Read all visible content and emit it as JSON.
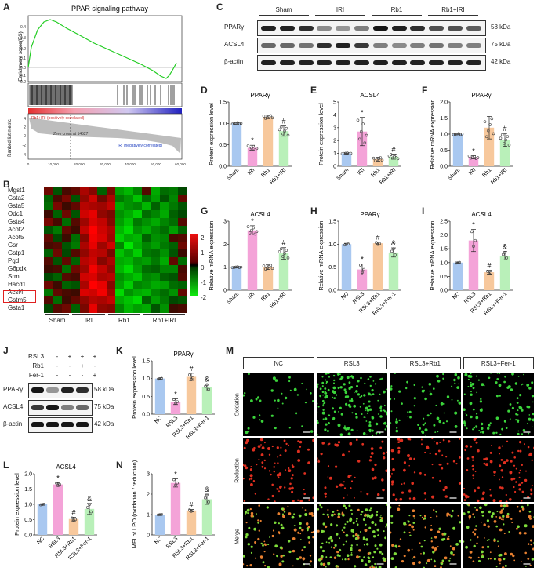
{
  "panel_letters": [
    "A",
    "B",
    "C",
    "D",
    "E",
    "F",
    "G",
    "H",
    "I",
    "J",
    "K",
    "L",
    "M",
    "N"
  ],
  "gsea": {
    "title": "PPAR signaling pathway",
    "ylabel_top": "Enrichment score(ES)",
    "ylabel_bottom": "Ranked list metric",
    "pos_label": "Rb1+IRI (positively correlated)",
    "neg_label": "IRI (negatively correlated)",
    "zero_cross": "Zero cross at 14527",
    "ytick_top": [
      "0.4",
      "0.3",
      "0.2",
      "0.1",
      "0.0",
      "-0.1",
      "-0.2"
    ],
    "ytick_bottom": [
      "4",
      "2",
      "0",
      "-2",
      "-4"
    ],
    "xticks": [
      "0",
      "10,000",
      "20,000",
      "30,000",
      "40,000",
      "50,000",
      "60,000"
    ]
  },
  "heatmap": {
    "genes": [
      "Mgst1",
      "Gsta2",
      "Gsta5",
      "Odc1",
      "Gsta4",
      "Acot2",
      "Acot5",
      "Gsr",
      "Gstp1",
      "Pgd",
      "G6pdx",
      "Srm",
      "Hacd1",
      "Acsl4",
      "Gstm5",
      "Gsta1"
    ],
    "highlight": "Acsl4",
    "groups": [
      "Sham",
      "IRI",
      "Rb1",
      "Rb1+IRI"
    ],
    "scale": [
      "2",
      "1",
      "0",
      "-1",
      "-2"
    ],
    "values": [
      [
        0.4,
        -0.2,
        0.1,
        0.3,
        0.9,
        0.6,
        -0.3,
        0.5,
        -0.8,
        -1.0,
        -0.6,
        0.2,
        -0.9,
        -0.4,
        -0.5,
        -0.1
      ],
      [
        -0.3,
        0.1,
        0.5,
        -0.2,
        0.7,
        1.2,
        0.4,
        0.9,
        -0.5,
        -0.7,
        -1.1,
        -0.4,
        -0.8,
        -0.2,
        -0.6,
        0.3
      ],
      [
        -0.4,
        0.5,
        0.0,
        0.3,
        1.0,
        0.9,
        0.8,
        1.1,
        -0.9,
        -0.7,
        -0.6,
        -1.0,
        -0.3,
        -0.8,
        -0.5,
        -0.2
      ],
      [
        0.0,
        -0.3,
        0.4,
        -0.2,
        1.2,
        1.4,
        0.7,
        0.5,
        -0.7,
        -0.9,
        -1.2,
        -0.4,
        -0.6,
        -0.9,
        -0.3,
        -0.1
      ],
      [
        0.5,
        0.1,
        -0.4,
        0.2,
        0.8,
        1.3,
        1.1,
        0.6,
        -0.8,
        -1.1,
        -0.5,
        -0.7,
        -0.9,
        -0.6,
        -0.4,
        0.2
      ],
      [
        -0.2,
        -0.5,
        0.3,
        0.0,
        1.1,
        1.6,
        1.2,
        0.9,
        -1.0,
        -1.3,
        -0.7,
        -0.9,
        -0.6,
        -0.4,
        -0.8,
        -0.3
      ],
      [
        0.3,
        -0.1,
        0.0,
        -0.4,
        0.6,
        1.5,
        1.3,
        0.8,
        -1.2,
        -0.9,
        -1.0,
        -0.3,
        -0.7,
        -0.6,
        0.1,
        0.2
      ],
      [
        0.1,
        0.2,
        -0.2,
        -0.5,
        0.9,
        1.4,
        0.8,
        1.2,
        -0.6,
        -1.4,
        -0.9,
        -0.6,
        -0.8,
        -0.5,
        -0.3,
        0.4
      ],
      [
        -0.3,
        0.4,
        -0.1,
        0.2,
        0.7,
        1.1,
        1.0,
        0.5,
        -1.1,
        -0.8,
        -1.2,
        -0.5,
        -0.4,
        -0.7,
        -0.2,
        0.0
      ],
      [
        0.2,
        -0.2,
        0.3,
        -0.3,
        1.0,
        1.2,
        0.6,
        0.9,
        -0.9,
        -1.0,
        -0.7,
        -0.8,
        -0.5,
        -0.9,
        0.3,
        -0.4
      ],
      [
        0.0,
        0.1,
        -0.4,
        0.4,
        0.8,
        1.5,
        1.1,
        0.7,
        -1.0,
        -1.3,
        -0.8,
        -0.4,
        -0.3,
        -0.6,
        -0.6,
        0.1
      ],
      [
        -0.1,
        -0.3,
        0.2,
        0.1,
        1.2,
        1.3,
        0.9,
        1.0,
        -0.7,
        -0.9,
        -1.1,
        -0.6,
        -0.7,
        -0.3,
        -0.2,
        0.2
      ],
      [
        0.4,
        0.0,
        -0.3,
        -0.2,
        0.9,
        1.6,
        1.4,
        0.6,
        -0.8,
        -1.2,
        -0.6,
        -0.7,
        -0.9,
        -0.8,
        -0.4,
        -0.3
      ],
      [
        -0.5,
        0.3,
        0.1,
        0.0,
        1.3,
        1.2,
        1.5,
        0.8,
        -1.3,
        -0.7,
        -0.9,
        -1.0,
        -0.6,
        -0.4,
        -0.7,
        0.3
      ],
      [
        0.2,
        -0.4,
        0.0,
        0.3,
        0.7,
        1.0,
        0.9,
        1.1,
        -0.9,
        -1.1,
        -1.3,
        -0.3,
        -0.8,
        -0.5,
        -0.1,
        -0.2
      ],
      [
        -0.1,
        0.2,
        0.4,
        -0.3,
        0.5,
        1.4,
        0.7,
        0.6,
        -0.6,
        -1.0,
        -0.8,
        -0.9,
        -0.2,
        -0.7,
        0.0,
        0.1
      ]
    ]
  },
  "wb_c": {
    "groups": [
      "Sham",
      "IRI",
      "Rb1",
      "Rb1+IRI"
    ],
    "rows": [
      {
        "name": "PPARγ",
        "kda": "58 kDa"
      },
      {
        "name": "ACSL4",
        "kda": "75 kDa"
      },
      {
        "name": "β-actin",
        "kda": "42 kDa"
      }
    ]
  },
  "wb_j": {
    "treat_rows": [
      {
        "name": "RSL3",
        "marks": [
          "-",
          "+",
          "+",
          "+"
        ]
      },
      {
        "name": "Rb1",
        "marks": [
          "-",
          "-",
          "+",
          "-"
        ]
      },
      {
        "name": "Fer-1",
        "marks": [
          "-",
          "-",
          "-",
          "+"
        ]
      }
    ],
    "rows": [
      {
        "name": "PPARγ",
        "kda": "58 kDa"
      },
      {
        "name": "ACSL4",
        "kda": "75 kDa"
      },
      {
        "name": "β-actin",
        "kda": "42 kDa"
      }
    ]
  },
  "micro": {
    "cols": [
      "NC",
      "RSL3",
      "RSL3+Rb1",
      "RSL3+Fer-1"
    ],
    "rows": [
      "Oxidation",
      "Reduction",
      "Merge"
    ]
  },
  "chart_data": [
    {
      "panel": "D",
      "type": "bar",
      "title": "PPARγ",
      "ylabel": "Protein expression level",
      "categories": [
        "Sham",
        "IRI",
        "Rb1",
        "Rb1+IRI"
      ],
      "values": [
        1.0,
        0.43,
        1.15,
        0.82
      ],
      "errors": [
        0.02,
        0.06,
        0.04,
        0.12
      ],
      "sig": [
        "",
        "*",
        "",
        "#"
      ],
      "ylim": [
        0,
        1.5
      ],
      "yticks": [
        "0.0",
        "0.5",
        "1.0",
        "1.5"
      ],
      "colors": [
        "#a9c8f0",
        "#f4a3d8",
        "#f7c89c",
        "#b9f0b9"
      ]
    },
    {
      "panel": "E",
      "type": "bar",
      "title": "ACSL4",
      "ylabel": "Protein expression level",
      "categories": [
        "Sham",
        "IRI",
        "Rb1",
        "Rb1+IRI"
      ],
      "values": [
        1.0,
        2.7,
        0.55,
        0.75
      ],
      "errors": [
        0.03,
        1.1,
        0.15,
        0.2
      ],
      "sig": [
        "",
        "*",
        "",
        "#"
      ],
      "ylim": [
        0,
        5
      ],
      "yticks": [
        "0",
        "1",
        "2",
        "3",
        "4",
        "5"
      ],
      "colors": [
        "#a9c8f0",
        "#f4a3d8",
        "#f7c89c",
        "#b9f0b9"
      ]
    },
    {
      "panel": "F",
      "type": "bar",
      "title": "PPARγ",
      "ylabel": "Relative mRNA expression",
      "categories": [
        "Sham",
        "IRI",
        "Rb1",
        "Rb1+IRI"
      ],
      "values": [
        1.0,
        0.28,
        1.2,
        0.82
      ],
      "errors": [
        0.02,
        0.05,
        0.35,
        0.2
      ],
      "sig": [
        "",
        "*",
        "",
        "#"
      ],
      "ylim": [
        0,
        2.0
      ],
      "yticks": [
        "0.0",
        "0.5",
        "1.0",
        "1.5",
        "2.0"
      ],
      "colors": [
        "#a9c8f0",
        "#f4a3d8",
        "#f7c89c",
        "#b9f0b9"
      ]
    },
    {
      "panel": "G",
      "type": "bar",
      "title": "ACSL4",
      "ylabel": "Relative mRNA expression",
      "categories": [
        "Sham",
        "IRI",
        "Rb1",
        "Rb1+IRI"
      ],
      "values": [
        1.0,
        2.6,
        1.0,
        1.6
      ],
      "errors": [
        0.02,
        0.2,
        0.1,
        0.25
      ],
      "sig": [
        "",
        "*",
        "",
        "#"
      ],
      "ylim": [
        0,
        3
      ],
      "yticks": [
        "0",
        "1",
        "2",
        "3"
      ],
      "colors": [
        "#a9c8f0",
        "#f4a3d8",
        "#f7c89c",
        "#b9f0b9"
      ]
    },
    {
      "panel": "H",
      "type": "bar",
      "title": "PPARγ",
      "ylabel": "Relative mRNA expression",
      "categories": [
        "NC",
        "RSL3",
        "RSL3+Rb1",
        "RSL3+Fer-1"
      ],
      "values": [
        1.0,
        0.45,
        1.02,
        0.82
      ],
      "errors": [
        0.02,
        0.12,
        0.03,
        0.1
      ],
      "sig": [
        "",
        "*",
        "#",
        "&"
      ],
      "ylim": [
        0,
        1.5
      ],
      "yticks": [
        "0.0",
        "0.5",
        "1.0",
        "1.5"
      ],
      "colors": [
        "#a9c8f0",
        "#f4a3d8",
        "#f7c89c",
        "#b9f0b9"
      ]
    },
    {
      "panel": "I",
      "type": "bar",
      "title": "ACSL4",
      "ylabel": "Relative mRNA expression",
      "categories": [
        "NC",
        "RSL3",
        "RSL3+Rb1",
        "RSL3+Fer-1"
      ],
      "values": [
        1.0,
        1.8,
        0.65,
        1.25
      ],
      "errors": [
        0.02,
        0.4,
        0.07,
        0.15
      ],
      "sig": [
        "",
        "*",
        "#",
        "&"
      ],
      "ylim": [
        0,
        2.5
      ],
      "yticks": [
        "0.0",
        "0.5",
        "1.0",
        "1.5",
        "2.0",
        "2.5"
      ],
      "colors": [
        "#a9c8f0",
        "#f4a3d8",
        "#f7c89c",
        "#b9f0b9"
      ]
    },
    {
      "panel": "K",
      "type": "bar",
      "title": "PPARγ",
      "ylabel": "Protein expression level",
      "categories": [
        "NC",
        "RSL3",
        "RSL3+Rb1",
        "RSL3+Fer-1"
      ],
      "values": [
        1.0,
        0.35,
        1.05,
        0.75
      ],
      "errors": [
        0.02,
        0.08,
        0.1,
        0.1
      ],
      "sig": [
        "",
        "*",
        "#",
        "&"
      ],
      "ylim": [
        0,
        1.5
      ],
      "yticks": [
        "0.0",
        "0.5",
        "1.0",
        "1.5"
      ],
      "colors": [
        "#a9c8f0",
        "#f4a3d8",
        "#f7c89c",
        "#b9f0b9"
      ]
    },
    {
      "panel": "L",
      "type": "bar",
      "title": "ACSL4",
      "ylabel": "Protein expression level",
      "categories": [
        "NC",
        "RSL3",
        "RSL3+Rb1",
        "RSL3+Fer-1"
      ],
      "values": [
        1.0,
        1.65,
        0.52,
        0.85
      ],
      "errors": [
        0.02,
        0.06,
        0.06,
        0.18
      ],
      "sig": [
        "",
        "*",
        "#",
        "&"
      ],
      "ylim": [
        0,
        2.0
      ],
      "yticks": [
        "0.0",
        "0.5",
        "1.0",
        "1.5",
        "2.0"
      ],
      "colors": [
        "#a9c8f0",
        "#f4a3d8",
        "#f7c89c",
        "#b9f0b9"
      ]
    },
    {
      "panel": "N",
      "type": "bar",
      "title": "",
      "ylabel": "MFI of LPO (oxidation / reduction)",
      "categories": [
        "NC",
        "RSL3",
        "RSL3+Rb1",
        "RSL3+Fer-1"
      ],
      "values": [
        1.0,
        2.55,
        1.2,
        1.75
      ],
      "errors": [
        0.02,
        0.2,
        0.05,
        0.25
      ],
      "sig": [
        "",
        "*",
        "#",
        "&"
      ],
      "ylim": [
        0,
        3
      ],
      "yticks": [
        "0",
        "1",
        "2",
        "3"
      ],
      "colors": [
        "#a9c8f0",
        "#f4a3d8",
        "#f7c89c",
        "#b9f0b9"
      ]
    }
  ]
}
